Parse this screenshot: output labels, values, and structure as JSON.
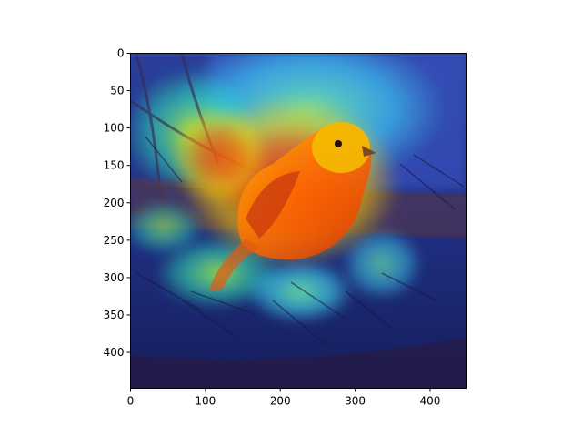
{
  "figure": {
    "image_description_kind": "heatmap-overlay-on-photo",
    "x_ticks": [
      0,
      100,
      200,
      300,
      400
    ],
    "y_ticks": [
      0,
      50,
      100,
      150,
      200,
      250,
      300,
      350,
      400
    ],
    "x_range": [
      0,
      448
    ],
    "y_range": [
      0,
      448
    ]
  },
  "chart_data": {
    "type": "heatmap",
    "xlim": [
      0,
      448
    ],
    "ylim": [
      448,
      0
    ],
    "x_tick_labels": [
      "0",
      "100",
      "200",
      "300",
      "400"
    ],
    "y_tick_labels": [
      "0",
      "50",
      "100",
      "150",
      "200",
      "250",
      "300",
      "350",
      "400"
    ],
    "colormap": "jet",
    "grid": false
  }
}
